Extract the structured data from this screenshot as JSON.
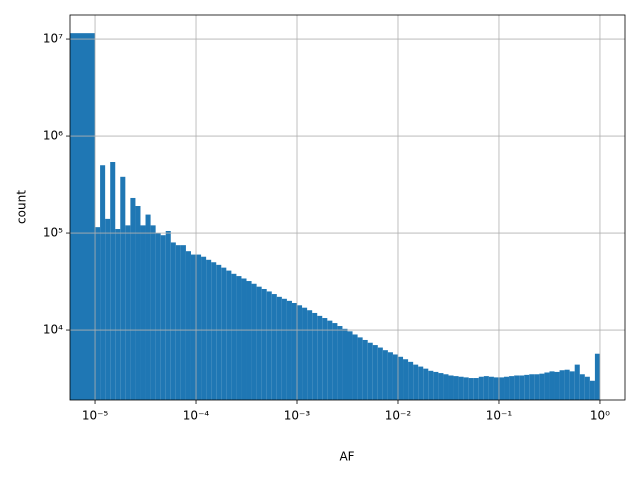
{
  "chart_data": {
    "type": "histogram",
    "xlabel": "AF",
    "ylabel": "count",
    "xscale": "log",
    "yscale": "log",
    "grid": true,
    "color": "#1f77b4",
    "xlim": [
      5.65e-06,
      1.77
    ],
    "ylim": [
      1900,
      17700000
    ],
    "xticks": [
      {
        "value": 1e-05,
        "label": "10⁻⁵"
      },
      {
        "value": 0.0001,
        "label": "10⁻⁴"
      },
      {
        "value": 0.001,
        "label": "10⁻³"
      },
      {
        "value": 0.01,
        "label": "10⁻²"
      },
      {
        "value": 0.1,
        "label": "10⁻¹"
      },
      {
        "value": 1,
        "label": "10⁰"
      }
    ],
    "yticks": [
      {
        "value": 10000,
        "label": "10⁴"
      },
      {
        "value": 100000,
        "label": "10⁵"
      },
      {
        "value": 1000000,
        "label": "10⁶"
      },
      {
        "value": 10000000,
        "label": "10⁷"
      }
    ],
    "bins": [
      5e-06,
      1e-05,
      1.122e-05,
      1.259e-05,
      1.413e-05,
      1.585e-05,
      1.778e-05,
      1.995e-05,
      2.239e-05,
      2.512e-05,
      2.818e-05,
      3.162e-05,
      3.548e-05,
      3.981e-05,
      4.467e-05,
      5.012e-05,
      5.623e-05,
      6.31e-05,
      7.079e-05,
      7.943e-05,
      8.913e-05,
      0.0001,
      0.0001122,
      0.0001259,
      0.0001413,
      0.0001585,
      0.0001778,
      0.0001995,
      0.0002239,
      0.0002512,
      0.0002818,
      0.0003162,
      0.0003548,
      0.0003981,
      0.0004467,
      0.0005012,
      0.0005623,
      0.000631,
      0.0007079,
      0.0007943,
      0.0008913,
      0.001,
      0.001122,
      0.001259,
      0.001413,
      0.001585,
      0.001778,
      0.001995,
      0.002239,
      0.002512,
      0.002818,
      0.003162,
      0.003548,
      0.003981,
      0.004467,
      0.005012,
      0.005623,
      0.00631,
      0.007079,
      0.007943,
      0.008913,
      0.01,
      0.01122,
      0.01259,
      0.01413,
      0.01585,
      0.01778,
      0.01995,
      0.02239,
      0.02512,
      0.02818,
      0.03162,
      0.03548,
      0.03981,
      0.04467,
      0.05012,
      0.05623,
      0.0631,
      0.07079,
      0.07943,
      0.08913,
      0.1,
      0.1122,
      0.1259,
      0.1413,
      0.1585,
      0.1778,
      0.1995,
      0.2239,
      0.2512,
      0.2818,
      0.3162,
      0.3548,
      0.3981,
      0.4467,
      0.5012,
      0.5623,
      0.631,
      0.7079,
      0.7943,
      0.8913,
      1
    ],
    "values": [
      11500000,
      115000,
      500000,
      140000,
      540000,
      110000,
      380000,
      120000,
      230000,
      190000,
      120000,
      155000,
      120000,
      100000,
      95000,
      105000,
      80000,
      75000,
      75000,
      65000,
      60000,
      60000,
      57000,
      53000,
      50000,
      47000,
      44000,
      41000,
      38000,
      36000,
      34000,
      32000,
      30000,
      28000,
      26500,
      25000,
      23500,
      22000,
      21000,
      20000,
      19000,
      18000,
      17000,
      16000,
      15000,
      14000,
      13300,
      12500,
      11800,
      11000,
      10300,
      9700,
      9000,
      8400,
      7900,
      7400,
      7000,
      6600,
      6200,
      5900,
      5600,
      5300,
      5000,
      4700,
      4400,
      4200,
      4000,
      3800,
      3700,
      3600,
      3500,
      3400,
      3350,
      3300,
      3250,
      3200,
      3200,
      3300,
      3350,
      3300,
      3250,
      3250,
      3300,
      3350,
      3400,
      3400,
      3450,
      3500,
      3500,
      3550,
      3650,
      3750,
      3700,
      3850,
      3900,
      3750,
      4400,
      3500,
      3300,
      3000,
      5700
    ]
  }
}
